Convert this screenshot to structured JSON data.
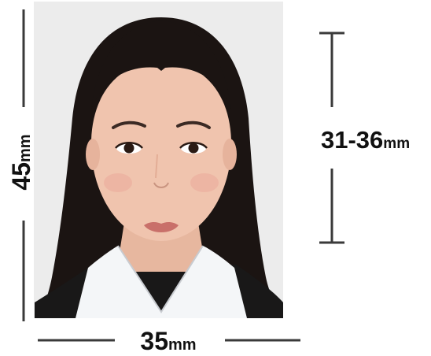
{
  "dimensions": {
    "height": {
      "value": "45",
      "unit": "mm"
    },
    "width": {
      "value": "35",
      "unit": "mm"
    },
    "head": {
      "value": "31-36",
      "unit": "mm"
    }
  },
  "colors": {
    "photo_background": "#ececec",
    "hair": "#1b1412",
    "skin": "#f0c4ae",
    "lips": "#c9706a",
    "shirt": "#f4f6f8",
    "jacket": "#191818",
    "dimension_line": "#3a3a3a",
    "text": "#111111"
  }
}
